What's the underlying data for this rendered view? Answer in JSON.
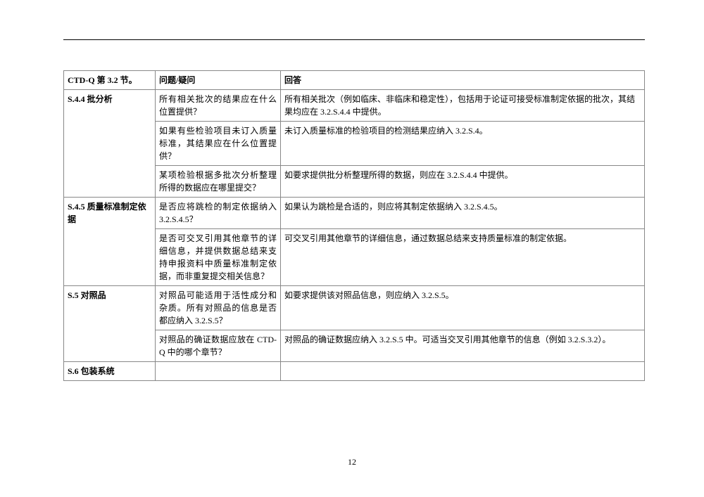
{
  "header": {
    "col1": "CTD-Q 第 3.2 节。",
    "col2": "问题/疑问",
    "col3": "回答"
  },
  "rows": [
    {
      "section": "S.4.4  批分析",
      "qa": [
        {
          "q": "所有相关批次的结果应在什么位置提供？",
          "a": "所有相关批次（例如临床、非临床和稳定性），包括用于论证可接受标准制定依据的批次，其结果均应在 3.2.S.4.4 中提供。"
        },
        {
          "q": "如果有些检验项目未订入质量标准，其结果应在什么位置提供？",
          "a": "未订入质量标准的检验项目的检测结果应纳入 3.2.S.4。"
        },
        {
          "q": "某项检验根据多批次分析整理所得的数据应在哪里提交？",
          "a": "如要求提供批分析整理所得的数据，则应在 3.2.S.4.4 中提供。"
        }
      ]
    },
    {
      "section": "S.4.5  质量标准制定依据",
      "qa": [
        {
          "q": "是否应将跳检的制定依据纳入3.2.S.4.5？",
          "a": "如果认为跳检是合适的，则应将其制定依据纳入 3.2.S.4.5。"
        },
        {
          "q": "是否可交叉引用其他章节的详细信息，并提供数据总结来支持申报资料中质量标准制定依据，而非重复提交相关信息？",
          "a": "可交叉引用其他章节的详细信息，通过数据总结来支持质量标准的制定依据。"
        }
      ]
    },
    {
      "section": "S.5  对照品",
      "qa": [
        {
          "q": "对照品可能适用于活性成分和杂质。所有对照品的信息是否都应纳入 3.2.S.5？",
          "a": "如要求提供该对照品信息，则应纳入 3.2.S.5。"
        },
        {
          "q": "对照品的确证数据应放在 CTD-Q 中的哪个章节？",
          "a": "对照品的确证数据应纳入 3.2.S.5 中。可适当交叉引用其他章节的信息（例如 3.2.S.3.2）。"
        }
      ]
    },
    {
      "section": "S.6  包装系统",
      "qa": [
        {
          "q": "",
          "a": ""
        }
      ]
    }
  ],
  "pageNumber": "12"
}
